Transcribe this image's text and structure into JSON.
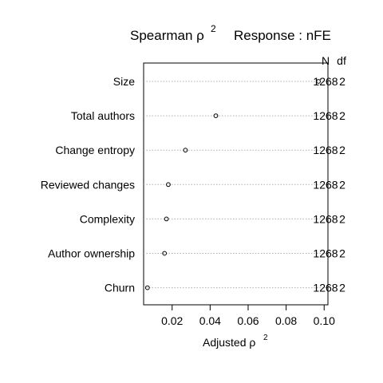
{
  "chart_data": {
    "type": "dotchart",
    "title": "Spearman ρ²    Response : nFE",
    "title_parts": {
      "left": "Spearman ρ",
      "left_superscript": "2",
      "right": "Response : nFE"
    },
    "xlabel": "Adjusted ρ",
    "xlabel_superscript": "2",
    "xlim": [
      0.005,
      0.102
    ],
    "xticks": [
      0.02,
      0.04,
      0.06,
      0.08,
      0.1
    ],
    "xtick_labels": [
      "0.02",
      "0.04",
      "0.06",
      "0.08",
      "0.10"
    ],
    "right_column_headers": [
      "N",
      "df"
    ],
    "categories": [
      "Size",
      "Total authors",
      "Change entropy",
      "Reviewed changes",
      "Complexity",
      "Author ownership",
      "Churn"
    ],
    "values": [
      0.097,
      0.043,
      0.027,
      0.018,
      0.017,
      0.016,
      0.007
    ],
    "n_values": [
      "1268",
      "1268",
      "1268",
      "1268",
      "1268",
      "1268",
      "1268"
    ],
    "df_values": [
      "2",
      "2",
      "2",
      "2",
      "2",
      "2",
      "2"
    ],
    "grid": "dotted horizontal lines"
  }
}
